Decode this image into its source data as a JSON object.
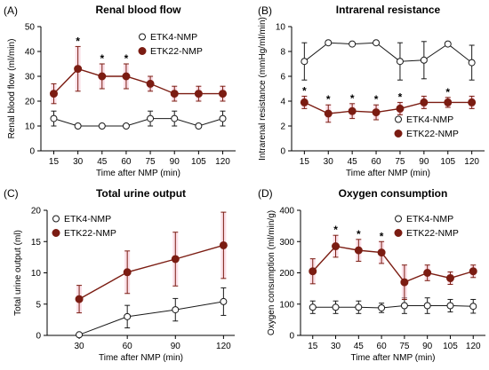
{
  "chart_data": [
    {
      "letter": "(A)",
      "type": "line",
      "title": "Renal blood flow",
      "xlabel": "Time after NMP (min)",
      "ylabel": "Renal blood flow (ml/min)",
      "xlim": [
        7,
        128
      ],
      "ylim": [
        0,
        50
      ],
      "xticks": [
        15,
        30,
        45,
        60,
        75,
        90,
        105,
        120
      ],
      "yticks": [
        0,
        10,
        20,
        30,
        40,
        50
      ],
      "grid": false,
      "legend_position": "top-right",
      "significance_x": [
        30,
        45,
        60
      ],
      "significance_label": "*",
      "series": [
        {
          "name": "ETK4-NMP",
          "marker": "open-circle",
          "color": "#1a1a1a",
          "x": [
            15,
            30,
            45,
            60,
            75,
            90,
            105,
            120
          ],
          "y": [
            13,
            10,
            10,
            10,
            13,
            13,
            10,
            13
          ],
          "err": [
            3,
            0,
            0,
            0,
            3,
            3,
            0,
            3
          ]
        },
        {
          "name": "ETK22-NMP",
          "marker": "filled-circle",
          "color": "#7b1c12",
          "x": [
            15,
            30,
            45,
            60,
            75,
            90,
            105,
            120
          ],
          "y": [
            23,
            33,
            30,
            30,
            27,
            23,
            23,
            23
          ],
          "err": [
            4,
            9,
            5,
            5,
            3,
            3,
            3,
            3
          ]
        }
      ]
    },
    {
      "letter": "(B)",
      "type": "line",
      "title": "Intrarenal resistance",
      "xlabel": "Time after NMP (min)",
      "ylabel": "Intrarenal resistance (mmHg/ml/min)",
      "xlim": [
        7,
        128
      ],
      "ylim": [
        0,
        10
      ],
      "xticks": [
        15,
        30,
        45,
        60,
        75,
        90,
        105,
        120
      ],
      "yticks": [
        0,
        2,
        4,
        6,
        8,
        10
      ],
      "grid": false,
      "legend_position": "bottom-right",
      "significance_x": [
        15,
        30,
        45,
        60,
        75,
        105
      ],
      "significance_label": "*",
      "series": [
        {
          "name": "ETK4-NMP",
          "marker": "open-circle",
          "color": "#1a1a1a",
          "x": [
            15,
            30,
            45,
            60,
            75,
            90,
            105,
            120
          ],
          "y": [
            7.2,
            8.7,
            8.6,
            8.7,
            7.2,
            7.3,
            8.6,
            7.1
          ],
          "err": [
            1.5,
            0,
            0,
            0,
            1.5,
            1.5,
            0,
            1.4
          ]
        },
        {
          "name": "ETK22-NMP",
          "marker": "filled-circle",
          "color": "#7b1c12",
          "x": [
            15,
            30,
            45,
            60,
            75,
            90,
            105,
            120
          ],
          "y": [
            3.9,
            3.0,
            3.2,
            3.1,
            3.4,
            3.9,
            3.9,
            3.9
          ],
          "err": [
            0.5,
            0.7,
            0.6,
            0.6,
            0.5,
            0.5,
            0.4,
            0.5
          ]
        }
      ]
    },
    {
      "letter": "(C)",
      "type": "line",
      "title": "Total urine output",
      "xlabel": "Time after NMP (min)",
      "ylabel": "Total urine output (ml)",
      "xlim": [
        10,
        127
      ],
      "ylim": [
        0,
        20
      ],
      "xticks": [
        30,
        60,
        90,
        120
      ],
      "yticks": [
        0,
        5,
        10,
        15,
        20
      ],
      "grid": false,
      "legend_position": "top-left",
      "significance_x": [],
      "significance_label": "*",
      "series": [
        {
          "name": "ETK4-NMP",
          "marker": "open-circle",
          "color": "#1a1a1a",
          "x": [
            30,
            60,
            90,
            120
          ],
          "y": [
            0.1,
            3.0,
            4.1,
            5.4
          ],
          "err": [
            0,
            1.8,
            1.8,
            2.2
          ]
        },
        {
          "name": "ETK22-NMP",
          "marker": "filled-circle",
          "color": "#7b1c12",
          "x": [
            30,
            60,
            90,
            120
          ],
          "y": [
            5.8,
            10.1,
            12.2,
            14.4
          ],
          "err": [
            2.2,
            3.4,
            4.3,
            5.3
          ]
        }
      ]
    },
    {
      "letter": "(D)",
      "type": "line",
      "title": "Oxygen consumption",
      "xlabel": "Time after NMP (min)",
      "ylabel": "Oxygen consumption (ml/min/g)",
      "xlim": [
        7,
        128
      ],
      "ylim": [
        0,
        400
      ],
      "xticks": [
        15,
        30,
        45,
        60,
        75,
        90,
        105,
        120
      ],
      "yticks": [
        0,
        100,
        200,
        300,
        400
      ],
      "grid": false,
      "legend_position": "top-right",
      "significance_x": [
        30,
        45,
        60
      ],
      "significance_label": "*",
      "series": [
        {
          "name": "ETK4-NMP",
          "marker": "open-circle",
          "color": "#1a1a1a",
          "x": [
            15,
            30,
            45,
            60,
            75,
            90,
            105,
            120
          ],
          "y": [
            90,
            90,
            90,
            88,
            95,
            95,
            95,
            93
          ],
          "err": [
            20,
            20,
            20,
            15,
            25,
            25,
            20,
            22
          ]
        },
        {
          "name": "ETK22-NMP",
          "marker": "filled-circle",
          "color": "#7b1c12",
          "x": [
            15,
            30,
            45,
            60,
            75,
            90,
            105,
            120
          ],
          "y": [
            205,
            285,
            272,
            265,
            170,
            200,
            183,
            205
          ],
          "err": [
            40,
            35,
            35,
            35,
            55,
            25,
            20,
            20
          ]
        }
      ]
    }
  ]
}
